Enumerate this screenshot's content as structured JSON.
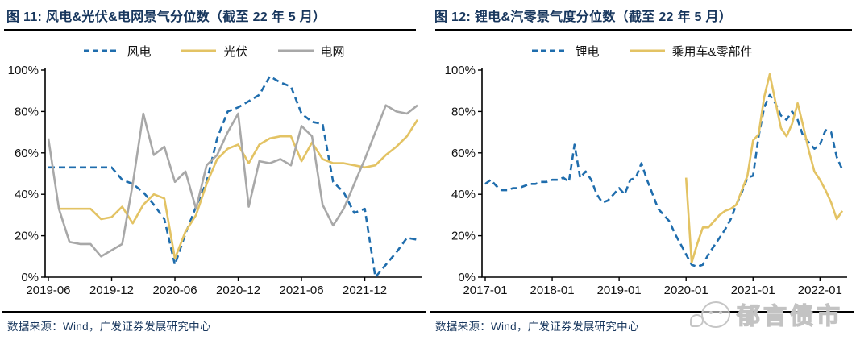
{
  "panels": [
    {
      "title": "图 11: 风电&光伏&电网景气分位数（截至 22 年 5 月）",
      "source": "数据来源：Wind，广发证券发展研究中心"
    },
    {
      "title": "图 12: 锂电&汽零景气度分位数（截至 22 年 5 月）",
      "source": "数据来源：Wind，广发证券发展研究中心"
    }
  ],
  "watermark": {
    "text": "郁言债市",
    "icon": "chat-bubbles-logo",
    "color": "#c6c6c6"
  },
  "colors": {
    "blue": "#1f6dad",
    "yellow": "#e3c364",
    "gray": "#a8a8a8",
    "navy_text": "#17365d",
    "axis": "#000000"
  },
  "chart_data": [
    {
      "type": "line",
      "title": "图 11: 风电&光伏&电网景气分位数（截至 22 年 5 月）",
      "x_start": "2019-06",
      "x_end": "2022-05",
      "x_frequency": "monthly",
      "x_tick_labels": [
        "2019-06",
        "2019-12",
        "2020-06",
        "2020-12",
        "2021-06",
        "2021-12"
      ],
      "x_tick_indices": [
        0,
        6,
        12,
        18,
        24,
        30
      ],
      "ylim": [
        0,
        100
      ],
      "y_ticks": [
        "0%",
        "20%",
        "40%",
        "60%",
        "80%",
        "100%"
      ],
      "grid": false,
      "legend_position": "top",
      "series": [
        {
          "name": "风电",
          "color": "#1f6dad",
          "dash": true,
          "values": [
            53,
            53,
            53,
            53,
            53,
            53,
            53,
            47,
            45,
            41,
            35,
            28,
            6,
            21,
            34,
            46,
            67,
            80,
            82,
            85,
            88,
            97,
            94,
            92,
            79,
            75,
            74,
            46,
            41,
            31,
            33,
            0,
            6,
            12,
            19,
            18
          ]
        },
        {
          "name": "光伏",
          "color": "#e3c364",
          "dash": false,
          "values": [
            null,
            33,
            33,
            33,
            33,
            28,
            29,
            34,
            26,
            35,
            40,
            38,
            9,
            22,
            30,
            45,
            57,
            62,
            64,
            55,
            64,
            67,
            68,
            68,
            56,
            65,
            57,
            55,
            55,
            54,
            53,
            54,
            59,
            63,
            68,
            76
          ]
        },
        {
          "name": "电网",
          "color": "#a8a8a8",
          "dash": false,
          "values": [
            67,
            33,
            17,
            16,
            16,
            10,
            13,
            16,
            45,
            79,
            59,
            63,
            46,
            51,
            33,
            54,
            59,
            70,
            79,
            34,
            56,
            55,
            57,
            54,
            73,
            68,
            35,
            25,
            33,
            45,
            57,
            70,
            83,
            80,
            79,
            83
          ]
        }
      ]
    },
    {
      "type": "line",
      "title": "图 12: 锂电&汽零景气度分位数（截至 22 年 5 月）",
      "x_start": "2017-01",
      "x_end": "2022-05",
      "x_frequency": "monthly",
      "x_tick_labels": [
        "2017-01",
        "2018-01",
        "2019-01",
        "2020-01",
        "2021-01",
        "2022-01"
      ],
      "x_tick_indices": [
        0,
        12,
        24,
        36,
        48,
        60
      ],
      "ylim": [
        0,
        100
      ],
      "y_ticks": [
        "0%",
        "20%",
        "40%",
        "60%",
        "80%",
        "100%"
      ],
      "grid": false,
      "legend_position": "top",
      "series": [
        {
          "name": "锂电",
          "color": "#1f6dad",
          "dash": true,
          "values": [
            45,
            47,
            44,
            42,
            42,
            43,
            43,
            44,
            45,
            45,
            46,
            46,
            47,
            47,
            48,
            46,
            64,
            48,
            51,
            47,
            40,
            36,
            37,
            40,
            43,
            40,
            47,
            48,
            55,
            47,
            40,
            33,
            30,
            27,
            21,
            16,
            11,
            6,
            5,
            6,
            11,
            15,
            19,
            23,
            28,
            35,
            41,
            48,
            49,
            68,
            82,
            88,
            84,
            78,
            76,
            80,
            76,
            68,
            65,
            62,
            64,
            71,
            70,
            58,
            52
          ]
        },
        {
          "name": "乘用车&零部件",
          "color": "#e3c364",
          "dash": false,
          "values": [
            null,
            null,
            null,
            null,
            null,
            null,
            null,
            null,
            null,
            null,
            null,
            null,
            null,
            null,
            null,
            null,
            null,
            null,
            null,
            null,
            null,
            null,
            null,
            null,
            null,
            null,
            null,
            null,
            null,
            null,
            null,
            null,
            null,
            null,
            null,
            null,
            48,
            7,
            16,
            24,
            24,
            27,
            30,
            32,
            33,
            35,
            42,
            49,
            66,
            69,
            87,
            98,
            85,
            72,
            68,
            74,
            84,
            73,
            61,
            51,
            47,
            42,
            36,
            28,
            32
          ]
        }
      ]
    }
  ]
}
